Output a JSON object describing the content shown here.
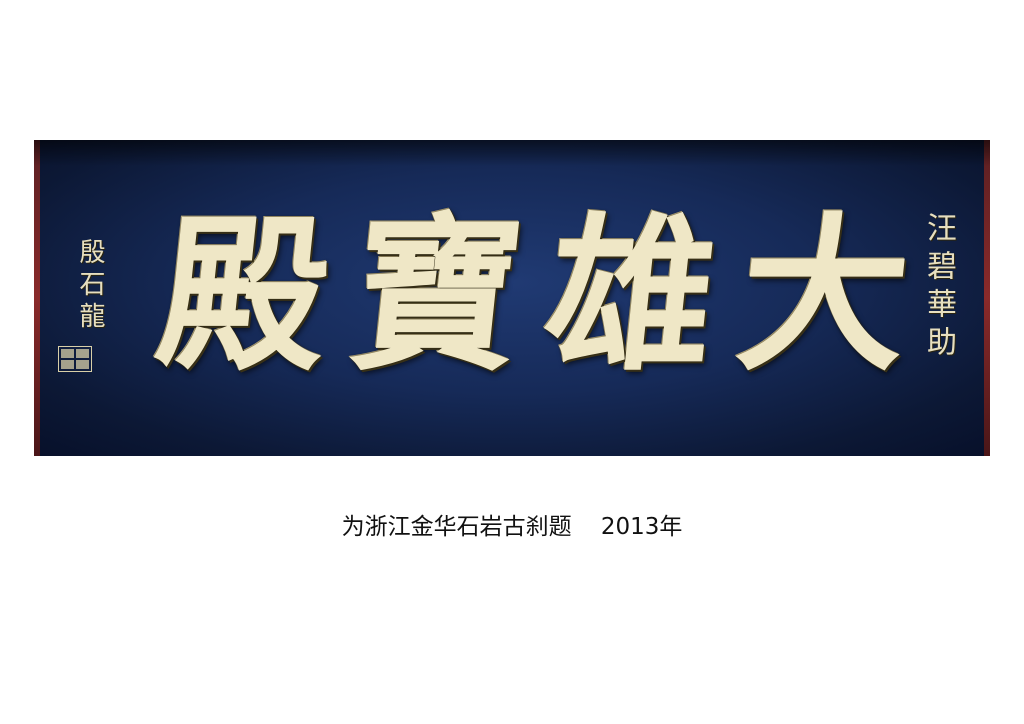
{
  "plaque": {
    "main_text": [
      "殿",
      "寶",
      "雄",
      "大"
    ],
    "right_inscription": "汪碧華助",
    "left_inscription": "殷石龍"
  },
  "caption": {
    "text": "为浙江金华石岩古刹题",
    "year": "2013年"
  },
  "colors": {
    "plaque_blue": "#162a58",
    "gold_text": "#efe7c6",
    "frame_red": "#8a2a2a"
  }
}
